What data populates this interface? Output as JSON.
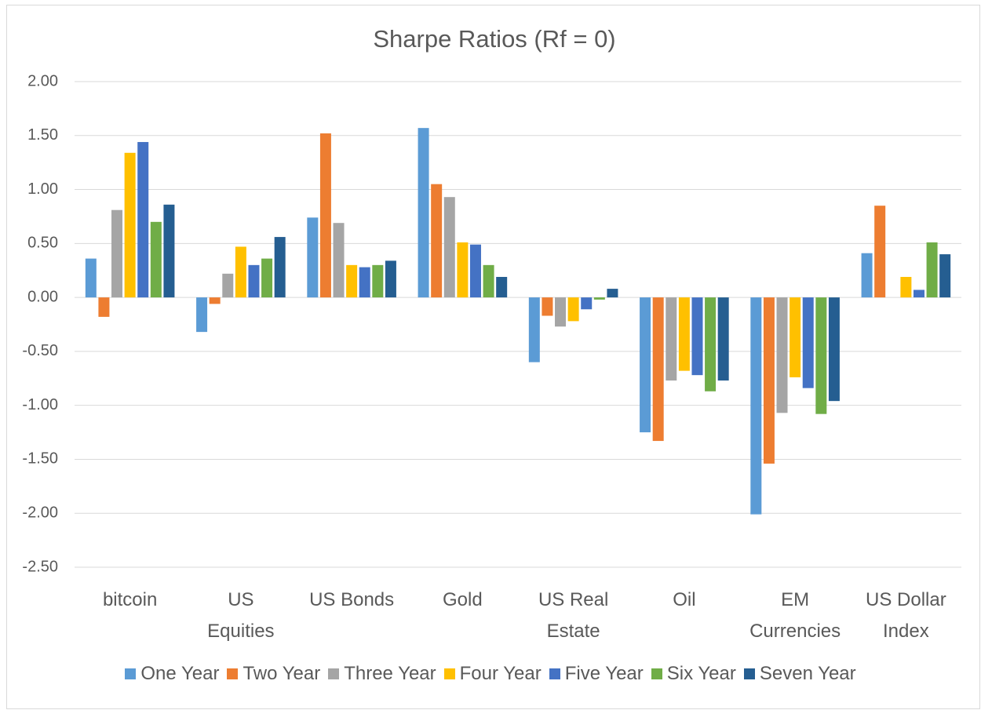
{
  "chart_data": {
    "type": "bar",
    "title": "Sharpe Ratios (Rf = 0)",
    "categories": [
      "bitcoin",
      "US Equities",
      "US Bonds",
      "Gold",
      "US Real Estate",
      "Oil",
      "EM Currencies",
      "US Dollar Index"
    ],
    "series": [
      {
        "name": "One Year",
        "color": "#5b9bd5",
        "values": [
          0.36,
          -0.32,
          0.74,
          1.57,
          -0.6,
          -1.25,
          -2.01,
          0.41
        ]
      },
      {
        "name": "Two Year",
        "color": "#ed7d31",
        "values": [
          -0.18,
          -0.06,
          1.52,
          1.05,
          -0.17,
          -1.33,
          -1.54,
          0.85
        ]
      },
      {
        "name": "Three Year",
        "color": "#a5a5a5",
        "values": [
          0.81,
          0.22,
          0.69,
          0.93,
          -0.27,
          -0.77,
          -1.07,
          0
        ]
      },
      {
        "name": "Four Year",
        "color": "#ffc000",
        "values": [
          1.34,
          0.47,
          0.3,
          0.51,
          -0.22,
          -0.68,
          -0.74,
          0.19
        ]
      },
      {
        "name": "Five Year",
        "color": "#4472c4",
        "values": [
          1.44,
          0.3,
          0.28,
          0.49,
          -0.11,
          -0.72,
          -0.84,
          0.07
        ]
      },
      {
        "name": "Six Year",
        "color": "#70ad47",
        "values": [
          0.7,
          0.36,
          0.3,
          0.3,
          -0.02,
          -0.87,
          -1.08,
          0.51
        ]
      },
      {
        "name": "Seven Year",
        "color": "#255e91",
        "values": [
          0.86,
          0.56,
          0.34,
          0.19,
          0.08,
          -0.77,
          -0.96,
          0.4
        ]
      }
    ],
    "ylim": [
      -2.5,
      2
    ],
    "yticks": [
      {
        "value": -2.5,
        "label": "-2.50"
      },
      {
        "value": -2,
        "label": "-2.00"
      },
      {
        "value": -1.5,
        "label": "-1.50"
      },
      {
        "value": -1,
        "label": "-1.00"
      },
      {
        "value": -0.5,
        "label": "-0.50"
      },
      {
        "value": 0,
        "label": "0.00"
      },
      {
        "value": 0.5,
        "label": "0.50"
      },
      {
        "value": 1,
        "label": "1.00"
      },
      {
        "value": 1.5,
        "label": "1.50"
      },
      {
        "value": 2,
        "label": "2.00"
      }
    ],
    "grid": true,
    "legend": "bottom"
  }
}
